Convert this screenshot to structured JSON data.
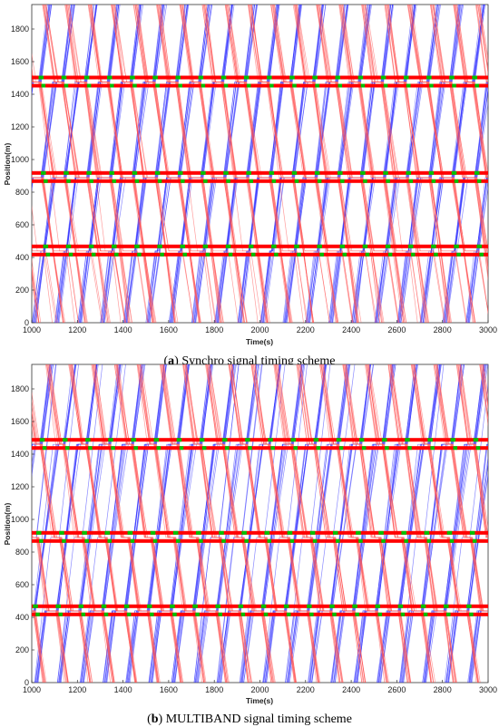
{
  "colors": {
    "blue_trajectory": "#2b2bff",
    "red_trajectory": "#ff5050",
    "red_signal": "#ff0000",
    "green_signal": "#00c000"
  },
  "chart_data": [
    {
      "type": "line",
      "panel_letter": "a",
      "caption": "Synchro signal timing scheme",
      "xlabel": "Time(s)",
      "ylabel": "Position(m)",
      "xlim": [
        1000,
        3000
      ],
      "ylim": [
        0,
        1950
      ],
      "xticks": [
        1000,
        1200,
        1400,
        1600,
        1800,
        2000,
        2200,
        2400,
        2600,
        2800,
        3000
      ],
      "yticks": [
        0,
        200,
        400,
        600,
        800,
        1000,
        1200,
        1400,
        1600,
        1800
      ],
      "grid": false,
      "cycle_length": 100,
      "signals": [
        {
          "position": 1475,
          "green_offset": 30
        },
        {
          "position": 890,
          "green_offset": 40
        },
        {
          "position": 440,
          "green_offset": 50
        }
      ],
      "series": [
        {
          "color_key": "blue_trajectory",
          "direction": "up",
          "speed": 11,
          "offset": 0
        },
        {
          "color_key": "red_trajectory",
          "direction": "down",
          "speed": 10,
          "offset": 45
        }
      ]
    },
    {
      "type": "line",
      "panel_letter": "b",
      "caption": "MULTIBAND signal timing scheme",
      "xlabel": "Time(s)",
      "ylabel": "Position(m)",
      "xlim": [
        1000,
        3000
      ],
      "ylim": [
        0,
        1950
      ],
      "xticks": [
        1000,
        1200,
        1400,
        1600,
        1800,
        2000,
        2200,
        2400,
        2600,
        2800,
        3000
      ],
      "yticks": [
        0,
        200,
        400,
        600,
        800,
        1000,
        1200,
        1400,
        1600,
        1800
      ],
      "grid": false,
      "cycle_length": 100,
      "signals": [
        {
          "position": 1460,
          "green_offset": 35
        },
        {
          "position": 890,
          "green_offset": 20
        },
        {
          "position": 440,
          "green_offset": 5
        }
      ],
      "series": [
        {
          "color_key": "blue_trajectory",
          "direction": "up",
          "speed": 11,
          "offset": 10
        },
        {
          "color_key": "red_trajectory",
          "direction": "down",
          "speed": 10,
          "offset": 60
        }
      ]
    }
  ]
}
